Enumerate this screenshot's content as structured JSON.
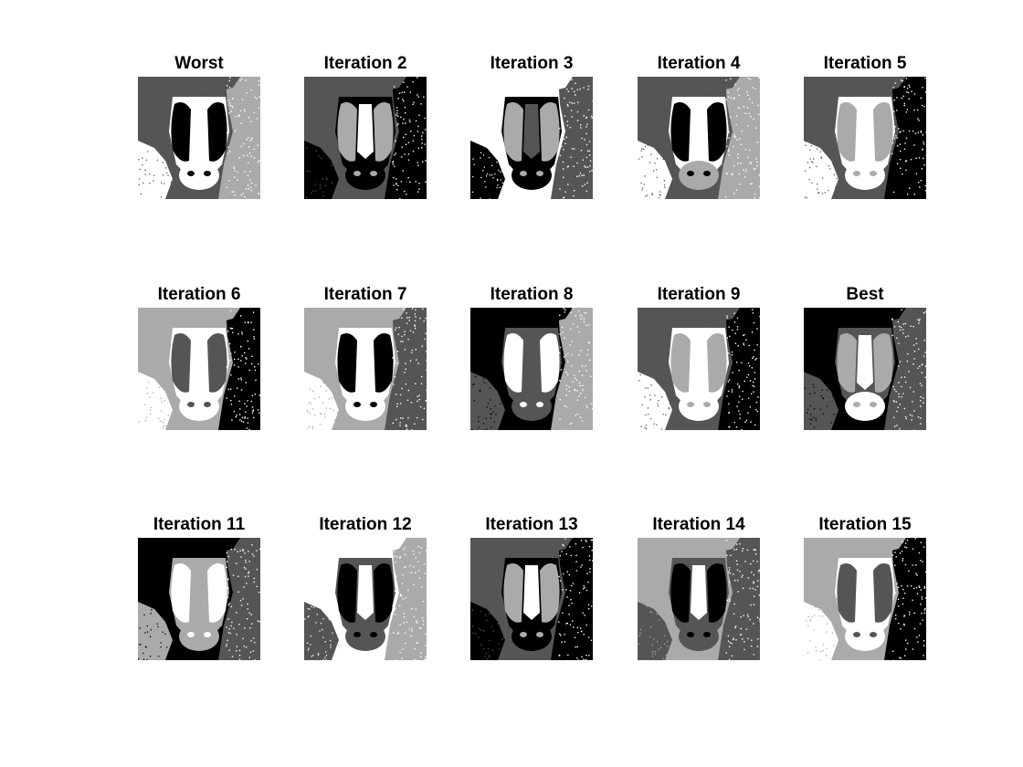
{
  "figure": {
    "panels": [
      {
        "title": "Worst",
        "tones": {
          "bg": "#555555",
          "face": "#ffffff",
          "cheekL": "#000000",
          "cheekR": "#000000",
          "nose": "#ffffff",
          "muzzle": "#ffffff",
          "side": "#aaaaaa",
          "speckle": "#ffffff"
        }
      },
      {
        "title": "Iteration 2",
        "tones": {
          "bg": "#555555",
          "face": "#000000",
          "cheekL": "#aaaaaa",
          "cheekR": "#aaaaaa",
          "nose": "#ffffff",
          "muzzle": "#000000",
          "side": "#000000",
          "speckle": "#ffffff"
        }
      },
      {
        "title": "Iteration 3",
        "tones": {
          "bg": "#ffffff",
          "face": "#000000",
          "cheekL": "#aaaaaa",
          "cheekR": "#aaaaaa",
          "nose": "#555555",
          "muzzle": "#000000",
          "side": "#555555",
          "speckle": "#ffffff"
        }
      },
      {
        "title": "Iteration 4",
        "tones": {
          "bg": "#555555",
          "face": "#ffffff",
          "cheekL": "#000000",
          "cheekR": "#000000",
          "nose": "#ffffff",
          "muzzle": "#aaaaaa",
          "side": "#aaaaaa",
          "speckle": "#ffffff"
        }
      },
      {
        "title": "Iteration 5",
        "tones": {
          "bg": "#555555",
          "face": "#ffffff",
          "cheekL": "#aaaaaa",
          "cheekR": "#aaaaaa",
          "nose": "#ffffff",
          "muzzle": "#ffffff",
          "side": "#000000",
          "speckle": "#ffffff"
        }
      },
      {
        "title": "Iteration 6",
        "tones": {
          "bg": "#aaaaaa",
          "face": "#ffffff",
          "cheekL": "#555555",
          "cheekR": "#555555",
          "nose": "#ffffff",
          "muzzle": "#ffffff",
          "side": "#000000",
          "speckle": "#ffffff"
        }
      },
      {
        "title": "Iteration 7",
        "tones": {
          "bg": "#aaaaaa",
          "face": "#ffffff",
          "cheekL": "#000000",
          "cheekR": "#000000",
          "nose": "#ffffff",
          "muzzle": "#ffffff",
          "side": "#555555",
          "speckle": "#ffffff"
        }
      },
      {
        "title": "Iteration 8",
        "tones": {
          "bg": "#000000",
          "face": "#555555",
          "cheekL": "#ffffff",
          "cheekR": "#ffffff",
          "nose": "#555555",
          "muzzle": "#555555",
          "side": "#aaaaaa",
          "speckle": "#ffffff"
        }
      },
      {
        "title": "Iteration 9",
        "tones": {
          "bg": "#555555",
          "face": "#ffffff",
          "cheekL": "#aaaaaa",
          "cheekR": "#aaaaaa",
          "nose": "#ffffff",
          "muzzle": "#ffffff",
          "side": "#000000",
          "speckle": "#ffffff"
        }
      },
      {
        "title": "Best",
        "tones": {
          "bg": "#000000",
          "face": "#555555",
          "cheekL": "#aaaaaa",
          "cheekR": "#aaaaaa",
          "nose": "#ffffff",
          "muzzle": "#ffffff",
          "side": "#555555",
          "speckle": "#ffffff"
        }
      },
      {
        "title": "Iteration 11",
        "tones": {
          "bg": "#000000",
          "face": "#aaaaaa",
          "cheekL": "#ffffff",
          "cheekR": "#ffffff",
          "nose": "#aaaaaa",
          "muzzle": "#aaaaaa",
          "side": "#555555",
          "speckle": "#ffffff"
        }
      },
      {
        "title": "Iteration 12",
        "tones": {
          "bg": "#ffffff",
          "face": "#555555",
          "cheekL": "#000000",
          "cheekR": "#000000",
          "nose": "#ffffff",
          "muzzle": "#555555",
          "side": "#aaaaaa",
          "speckle": "#ffffff"
        }
      },
      {
        "title": "Iteration 13",
        "tones": {
          "bg": "#555555",
          "face": "#000000",
          "cheekL": "#aaaaaa",
          "cheekR": "#aaaaaa",
          "nose": "#ffffff",
          "muzzle": "#000000",
          "side": "#000000",
          "speckle": "#ffffff"
        }
      },
      {
        "title": "Iteration 14",
        "tones": {
          "bg": "#aaaaaa",
          "face": "#555555",
          "cheekL": "#000000",
          "cheekR": "#000000",
          "nose": "#ffffff",
          "muzzle": "#555555",
          "side": "#555555",
          "speckle": "#ffffff"
        }
      },
      {
        "title": "Iteration 15",
        "tones": {
          "bg": "#aaaaaa",
          "face": "#ffffff",
          "cheekL": "#555555",
          "cheekR": "#555555",
          "nose": "#ffffff",
          "muzzle": "#ffffff",
          "side": "#000000",
          "speckle": "#ffffff"
        }
      }
    ]
  }
}
